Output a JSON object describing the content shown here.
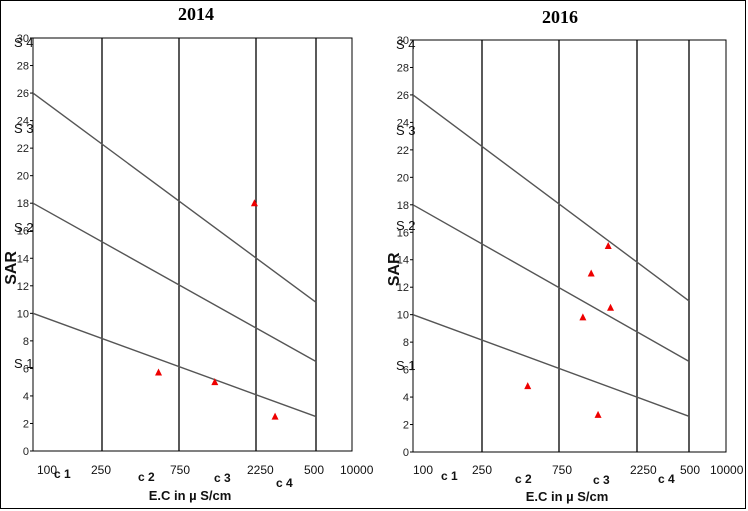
{
  "chart_data": [
    {
      "type": "scatter",
      "title": "2014",
      "ylabel": "SAR",
      "xlabel": "E.C in  µ S/cm",
      "ylim": [
        0,
        30
      ],
      "yticks": [
        0,
        2,
        4,
        6,
        8,
        10,
        12,
        14,
        16,
        18,
        20,
        22,
        24,
        26,
        28,
        30
      ],
      "x_tick_labels": [
        "100",
        "250",
        "750",
        "2250",
        "500",
        "10000"
      ],
      "class_labels": [
        "c 1",
        "c 2",
        "c 3",
        "c 4"
      ],
      "sodium_labels": [
        "S 4",
        "S 3",
        "S 2",
        "S 1"
      ],
      "boundary_lines": [
        {
          "from": [
            100,
            26
          ],
          "to": [
            5000,
            10.8
          ]
        },
        {
          "from": [
            100,
            18
          ],
          "to": [
            5000,
            6.5
          ]
        },
        {
          "from": [
            100,
            10
          ],
          "to": [
            5000,
            2.5
          ]
        }
      ],
      "series": [
        {
          "points": [
            [
              560,
              5.7
            ],
            [
              1250,
              5.0
            ],
            [
              2200,
              18.0
            ],
            [
              2900,
              2.5
            ]
          ]
        }
      ],
      "marker_color": "#ee0000"
    },
    {
      "type": "scatter",
      "title": "2016",
      "ylabel": "SAR",
      "xlabel": "E.C in  µ S/cm",
      "ylim": [
        0,
        30
      ],
      "yticks": [
        0,
        2,
        4,
        6,
        8,
        10,
        12,
        14,
        16,
        18,
        20,
        22,
        24,
        26,
        28,
        30
      ],
      "x_tick_labels": [
        "100",
        "250",
        "750",
        "2250",
        "500",
        "10000"
      ],
      "class_labels": [
        "c 1",
        "c 2",
        "c 3",
        "c 4"
      ],
      "sodium_labels": [
        "S 4",
        "S 3",
        "S 2",
        "S 1"
      ],
      "boundary_lines": [
        {
          "from": [
            100,
            26
          ],
          "to": [
            5000,
            11.0
          ]
        },
        {
          "from": [
            100,
            18
          ],
          "to": [
            5000,
            6.6
          ]
        },
        {
          "from": [
            100,
            10
          ],
          "to": [
            5000,
            2.6
          ]
        }
      ],
      "series": [
        {
          "points": [
            [
              480,
              4.8
            ],
            [
              1050,
              9.8
            ],
            [
              1180,
              13.0
            ],
            [
              1300,
              2.7
            ],
            [
              1500,
              15.0
            ],
            [
              1550,
              10.5
            ]
          ]
        }
      ],
      "marker_color": "#ee0000"
    }
  ]
}
